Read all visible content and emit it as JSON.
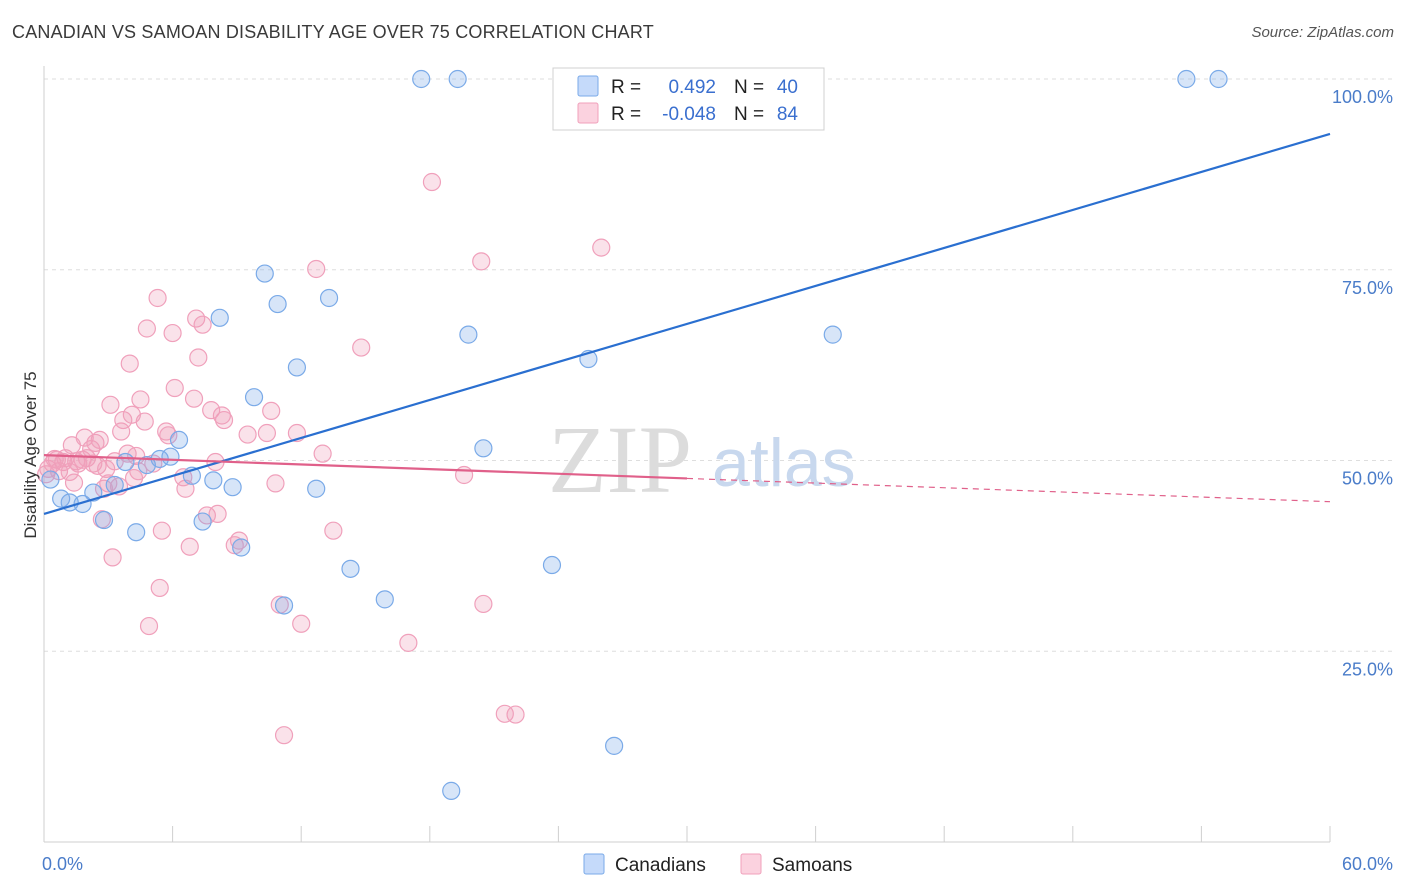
{
  "title": "CANADIAN VS SAMOAN DISABILITY AGE OVER 75 CORRELATION CHART",
  "source": "Source: ZipAtlas.com",
  "watermark": {
    "zip": "ZIP",
    "atlas": "atlas"
  },
  "legend_top": {
    "rows": [
      {
        "r_label": "R =",
        "r_value": "0.492",
        "n_label": "N =",
        "n_value": "40",
        "color": "#7aaae8"
      },
      {
        "r_label": "R =",
        "r_value": "-0.048",
        "n_label": "N =",
        "n_value": "84",
        "color": "#f0a0bb"
      }
    ]
  },
  "legend_bottom": [
    {
      "label": "Canadians",
      "color": "#7aaae8"
    },
    {
      "label": "Samoans",
      "color": "#f0a0bb"
    }
  ],
  "chart_data": {
    "type": "scatter",
    "title": "CANADIAN VS SAMOAN DISABILITY AGE OVER 75 CORRELATION CHART",
    "xlabel": "",
    "ylabel": "Disability Age Over 75",
    "xlim": [
      0,
      60
    ],
    "ylim": [
      0,
      100
    ],
    "x_tick_labels": [
      "0.0%",
      "60.0%"
    ],
    "y_ticks": [
      25,
      50,
      75,
      100
    ],
    "y_tick_labels": [
      "25.0%",
      "50.0%",
      "75.0%",
      "100.0%"
    ],
    "grid": "horizontal dashed",
    "legend_position": "top-center",
    "series": [
      {
        "name": "Canadians",
        "color": "#7aaae8",
        "line_color": "#2a6fd0",
        "trend": {
          "x": [
            0,
            60
          ],
          "y": [
            43.0,
            92.8
          ],
          "dashed_from": null
        },
        "points": [
          [
            0.3,
            47.5
          ],
          [
            0.8,
            45.0
          ],
          [
            1.2,
            44.5
          ],
          [
            1.8,
            44.3
          ],
          [
            2.3,
            45.8
          ],
          [
            2.8,
            42.2
          ],
          [
            3.3,
            46.8
          ],
          [
            3.8,
            49.8
          ],
          [
            4.3,
            40.6
          ],
          [
            4.8,
            49.4
          ],
          [
            5.4,
            50.2
          ],
          [
            5.9,
            50.5
          ],
          [
            6.3,
            52.7
          ],
          [
            6.9,
            48.0
          ],
          [
            7.4,
            42.0
          ],
          [
            7.9,
            47.4
          ],
          [
            8.2,
            68.7
          ],
          [
            8.8,
            46.5
          ],
          [
            9.2,
            38.6
          ],
          [
            9.8,
            58.3
          ],
          [
            10.3,
            74.5
          ],
          [
            10.9,
            70.5
          ],
          [
            11.2,
            31.0
          ],
          [
            11.8,
            62.2
          ],
          [
            12.7,
            46.3
          ],
          [
            13.3,
            71.3
          ],
          [
            14.3,
            35.8
          ],
          [
            15.9,
            31.8
          ],
          [
            17.6,
            100.0
          ],
          [
            19.0,
            6.7
          ],
          [
            19.3,
            100.0
          ],
          [
            19.8,
            66.5
          ],
          [
            20.5,
            51.6
          ],
          [
            23.7,
            36.3
          ],
          [
            25.4,
            63.3
          ],
          [
            26.6,
            12.6
          ],
          [
            35.5,
            100.0
          ],
          [
            36.8,
            66.5
          ],
          [
            53.3,
            100.0
          ],
          [
            54.8,
            100.0
          ]
        ]
      },
      {
        "name": "Samoans",
        "color": "#f0a0bb",
        "line_color": "#e0608a",
        "trend": {
          "x": [
            0,
            60
          ],
          "y": [
            50.7,
            44.6
          ],
          "dashed_from": 30
        },
        "points": [
          [
            0.2,
            48.9
          ],
          [
            0.4,
            49.6
          ],
          [
            0.6,
            50.1
          ],
          [
            0.7,
            48.6
          ],
          [
            0.9,
            49.8
          ],
          [
            1.0,
            50.3
          ],
          [
            1.2,
            48.5
          ],
          [
            1.3,
            52.0
          ],
          [
            1.4,
            47.1
          ],
          [
            1.5,
            49.9
          ],
          [
            1.6,
            49.6
          ],
          [
            1.8,
            50.1
          ],
          [
            1.9,
            53.0
          ],
          [
            2.0,
            50.3
          ],
          [
            2.2,
            51.5
          ],
          [
            2.3,
            49.6
          ],
          [
            2.4,
            52.3
          ],
          [
            2.5,
            49.3
          ],
          [
            2.6,
            52.7
          ],
          [
            2.7,
            42.3
          ],
          [
            2.8,
            46.3
          ],
          [
            2.9,
            48.9
          ],
          [
            3.0,
            47.0
          ],
          [
            3.1,
            57.3
          ],
          [
            3.2,
            37.3
          ],
          [
            3.3,
            49.9
          ],
          [
            3.5,
            46.6
          ],
          [
            3.6,
            53.8
          ],
          [
            3.7,
            55.3
          ],
          [
            3.9,
            50.9
          ],
          [
            4.0,
            62.7
          ],
          [
            4.1,
            56.0
          ],
          [
            4.2,
            47.7
          ],
          [
            4.3,
            50.6
          ],
          [
            4.4,
            48.6
          ],
          [
            4.5,
            58.0
          ],
          [
            4.7,
            55.1
          ],
          [
            4.8,
            67.3
          ],
          [
            4.9,
            28.3
          ],
          [
            5.1,
            49.6
          ],
          [
            5.3,
            71.3
          ],
          [
            5.4,
            33.3
          ],
          [
            5.5,
            40.8
          ],
          [
            5.7,
            53.8
          ],
          [
            5.8,
            53.3
          ],
          [
            6.0,
            66.7
          ],
          [
            6.1,
            59.5
          ],
          [
            6.5,
            47.8
          ],
          [
            6.6,
            46.3
          ],
          [
            6.8,
            38.7
          ],
          [
            7.0,
            58.1
          ],
          [
            7.1,
            68.6
          ],
          [
            7.2,
            63.5
          ],
          [
            7.4,
            67.8
          ],
          [
            7.6,
            42.8
          ],
          [
            7.8,
            56.6
          ],
          [
            8.0,
            49.8
          ],
          [
            8.1,
            43.0
          ],
          [
            8.3,
            55.9
          ],
          [
            8.4,
            55.3
          ],
          [
            8.9,
            38.9
          ],
          [
            9.1,
            39.5
          ],
          [
            9.5,
            53.4
          ],
          [
            10.4,
            53.6
          ],
          [
            10.6,
            56.5
          ],
          [
            10.8,
            47.0
          ],
          [
            11.0,
            31.1
          ],
          [
            11.2,
            14.0
          ],
          [
            11.8,
            53.6
          ],
          [
            12.0,
            28.6
          ],
          [
            12.7,
            75.1
          ],
          [
            13.0,
            50.9
          ],
          [
            13.5,
            40.8
          ],
          [
            14.8,
            64.8
          ],
          [
            17.0,
            26.1
          ],
          [
            18.1,
            86.5
          ],
          [
            19.6,
            48.1
          ],
          [
            20.4,
            76.1
          ],
          [
            20.5,
            31.2
          ],
          [
            21.5,
            16.8
          ],
          [
            22.0,
            16.7
          ],
          [
            26.0,
            77.9
          ],
          [
            0.1,
            48.2
          ],
          [
            0.5,
            50.2
          ]
        ]
      }
    ]
  }
}
